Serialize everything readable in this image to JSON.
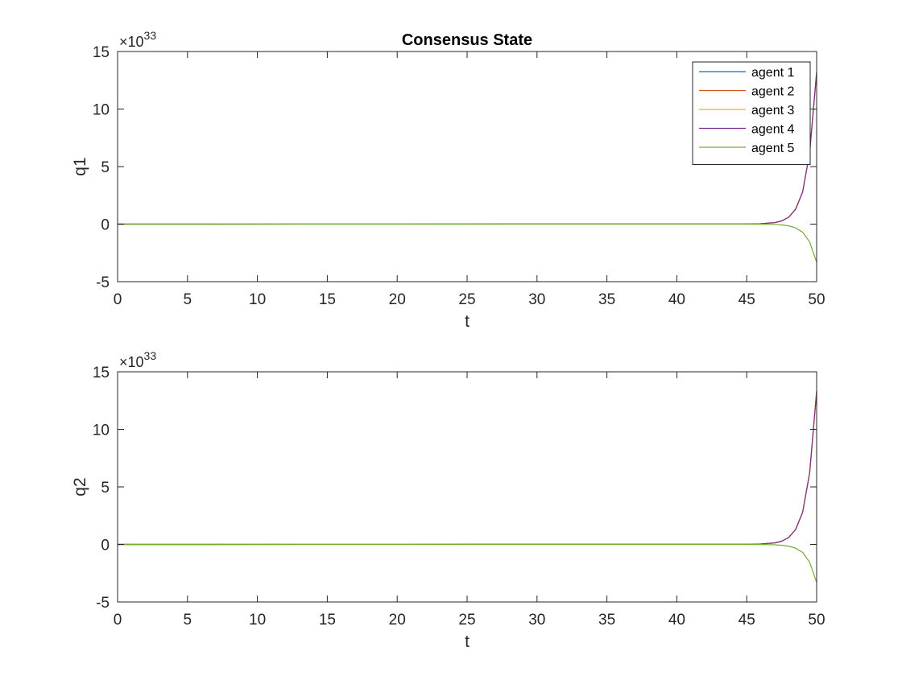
{
  "figure": {
    "background": "#ffffff",
    "axis_color": "#262626"
  },
  "chart_data": [
    {
      "type": "line",
      "title": "Consensus State",
      "xlabel": "t",
      "ylabel": "q1",
      "xlim": [
        0,
        50
      ],
      "ylim": [
        -5,
        15
      ],
      "xticks": [
        0,
        5,
        10,
        15,
        20,
        25,
        30,
        35,
        40,
        45,
        50
      ],
      "yticks": [
        -5,
        0,
        5,
        10,
        15
      ],
      "y_exponent": {
        "base": "×10",
        "power": "33"
      },
      "grid": false,
      "legend": {
        "placement": "top-right",
        "entries": [
          "agent 1",
          "agent 2",
          "agent 3",
          "agent 4",
          "agent 5"
        ]
      },
      "series": [
        {
          "name": "agent 1",
          "color": "#0072bd",
          "x": [
            0,
            45,
            46,
            47,
            47.5,
            48,
            48.5,
            49,
            49.5,
            50
          ],
          "y": [
            0,
            0.01,
            0.04,
            0.13,
            0.28,
            0.6,
            1.3,
            2.8,
            6.2,
            13.2
          ]
        },
        {
          "name": "agent 2",
          "color": "#d95319",
          "x": [
            0,
            45,
            46,
            47,
            47.5,
            48,
            48.5,
            49,
            49.5,
            50
          ],
          "y": [
            0,
            0.01,
            0.04,
            0.13,
            0.28,
            0.6,
            1.3,
            2.8,
            6.2,
            13.2
          ]
        },
        {
          "name": "agent 3",
          "color": "#edb120",
          "x": [
            0,
            45,
            46,
            47,
            47.5,
            48,
            48.5,
            49,
            49.5,
            50
          ],
          "y": [
            0,
            0.01,
            0.04,
            0.13,
            0.28,
            0.6,
            1.3,
            2.8,
            6.2,
            13.2
          ]
        },
        {
          "name": "agent 4",
          "color": "#7e2f8e",
          "x": [
            0,
            45,
            46,
            47,
            47.5,
            48,
            48.5,
            49,
            49.5,
            50
          ],
          "y": [
            0,
            0.01,
            0.04,
            0.13,
            0.28,
            0.6,
            1.3,
            2.8,
            6.2,
            13.2
          ]
        },
        {
          "name": "agent 5",
          "color": "#77ac30",
          "x": [
            0,
            45,
            46,
            47,
            47.5,
            48,
            48.5,
            49,
            49.5,
            50
          ],
          "y": [
            0,
            0,
            -0.01,
            -0.03,
            -0.07,
            -0.15,
            -0.33,
            -0.7,
            -1.55,
            -3.3
          ]
        }
      ]
    },
    {
      "type": "line",
      "title": "",
      "xlabel": "t",
      "ylabel": "q2",
      "xlim": [
        0,
        50
      ],
      "ylim": [
        -5,
        15
      ],
      "xticks": [
        0,
        5,
        10,
        15,
        20,
        25,
        30,
        35,
        40,
        45,
        50
      ],
      "yticks": [
        -5,
        0,
        5,
        10,
        15
      ],
      "y_exponent": {
        "base": "×10",
        "power": "33"
      },
      "grid": false,
      "legend": null,
      "series": [
        {
          "name": "agent 1",
          "color": "#0072bd",
          "x": [
            0,
            45,
            46,
            47,
            47.5,
            48,
            48.5,
            49,
            49.5,
            50
          ],
          "y": [
            0,
            0.01,
            0.04,
            0.13,
            0.28,
            0.6,
            1.3,
            2.8,
            6.2,
            13.3
          ]
        },
        {
          "name": "agent 2",
          "color": "#d95319",
          "x": [
            0,
            45,
            46,
            47,
            47.5,
            48,
            48.5,
            49,
            49.5,
            50
          ],
          "y": [
            0,
            0.01,
            0.04,
            0.13,
            0.28,
            0.6,
            1.3,
            2.8,
            6.2,
            13.3
          ]
        },
        {
          "name": "agent 3",
          "color": "#edb120",
          "x": [
            0,
            45,
            46,
            47,
            47.5,
            48,
            48.5,
            49,
            49.5,
            50
          ],
          "y": [
            0,
            0.01,
            0.04,
            0.13,
            0.28,
            0.6,
            1.3,
            2.8,
            6.2,
            13.3
          ]
        },
        {
          "name": "agent 4",
          "color": "#7e2f8e",
          "x": [
            0,
            45,
            46,
            47,
            47.5,
            48,
            48.5,
            49,
            49.5,
            50
          ],
          "y": [
            0,
            0.01,
            0.04,
            0.13,
            0.28,
            0.6,
            1.3,
            2.8,
            6.2,
            13.3
          ]
        },
        {
          "name": "agent 5",
          "color": "#77ac30",
          "x": [
            0,
            45,
            46,
            47,
            47.5,
            48,
            48.5,
            49,
            49.5,
            50
          ],
          "y": [
            0,
            0,
            -0.01,
            -0.03,
            -0.07,
            -0.15,
            -0.33,
            -0.7,
            -1.55,
            -3.3
          ]
        }
      ]
    }
  ]
}
